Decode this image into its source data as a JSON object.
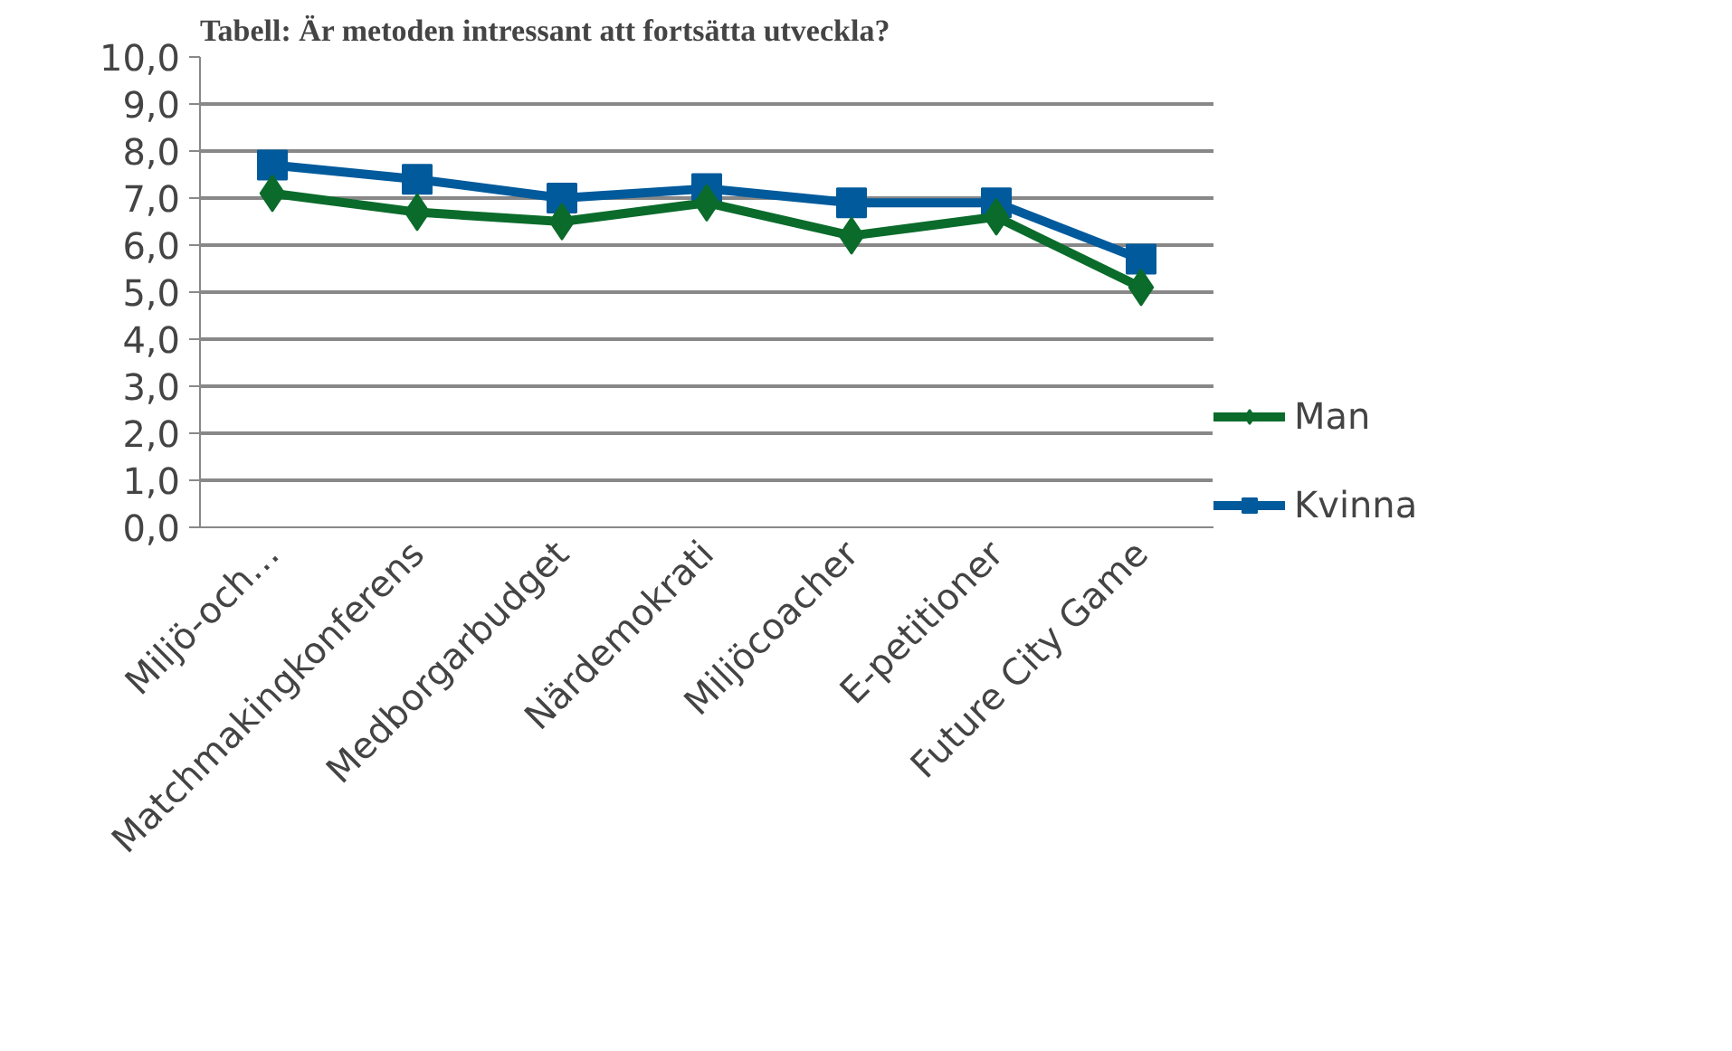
{
  "chart_data": {
    "type": "line",
    "title": "Tabell: Är metoden intressant att fortsätta utveckla?",
    "categories": [
      "Miljö-och…",
      "Matchmakingkonferens",
      "Medborgarbudget",
      "Närdemokrati",
      "Miljöcoacher",
      "E-petitioner",
      "Future City Game"
    ],
    "series": [
      {
        "name": "Man",
        "color": "#0a6b2b",
        "marker": "diamond",
        "values": [
          7.1,
          6.7,
          6.5,
          6.9,
          6.2,
          6.6,
          5.1
        ]
      },
      {
        "name": "Kvinna",
        "color": "#005a9c",
        "marker": "square",
        "values": [
          7.7,
          7.4,
          7.0,
          7.2,
          6.9,
          6.9,
          5.7
        ]
      }
    ],
    "ylim": [
      0,
      10
    ],
    "yticks": [
      {
        "value": 0,
        "label": "0,0"
      },
      {
        "value": 1,
        "label": "1,0"
      },
      {
        "value": 2,
        "label": "2,0"
      },
      {
        "value": 3,
        "label": "3,0"
      },
      {
        "value": 4,
        "label": "4,0"
      },
      {
        "value": 5,
        "label": "5,0"
      },
      {
        "value": 6,
        "label": "6,0"
      },
      {
        "value": 7,
        "label": "7,0"
      },
      {
        "value": 8,
        "label": "8,0"
      },
      {
        "value": 9,
        "label": "9,0"
      },
      {
        "value": 10,
        "label": "10,0"
      }
    ],
    "grid": "y",
    "legend": "right",
    "line_style": "solid"
  }
}
